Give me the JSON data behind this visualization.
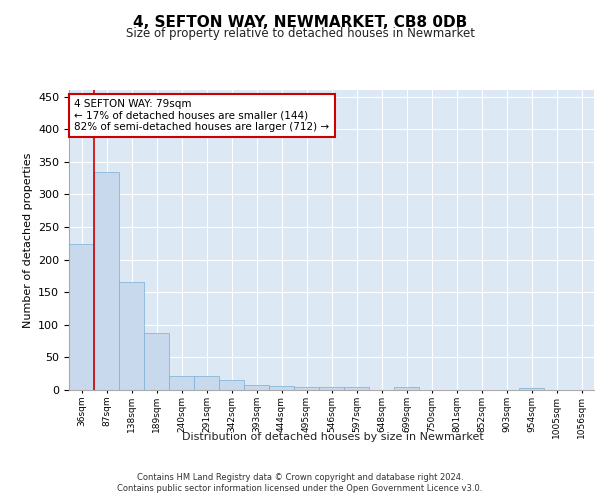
{
  "title": "4, SEFTON WAY, NEWMARKET, CB8 0DB",
  "subtitle": "Size of property relative to detached houses in Newmarket",
  "xlabel": "Distribution of detached houses by size in Newmarket",
  "ylabel": "Number of detached properties",
  "bar_color": "#c8d9ed",
  "bar_edge_color": "#7aafd4",
  "background_color": "#dce9f5",
  "grid_color": "#ffffff",
  "categories": [
    "36sqm",
    "87sqm",
    "138sqm",
    "189sqm",
    "240sqm",
    "291sqm",
    "342sqm",
    "393sqm",
    "444sqm",
    "495sqm",
    "546sqm",
    "597sqm",
    "648sqm",
    "699sqm",
    "750sqm",
    "801sqm",
    "852sqm",
    "903sqm",
    "954sqm",
    "1005sqm",
    "1056sqm"
  ],
  "values": [
    224,
    335,
    165,
    88,
    22,
    22,
    15,
    7,
    6,
    5,
    4,
    4,
    0,
    4,
    0,
    0,
    0,
    0,
    3,
    0,
    0
  ],
  "ylim": [
    0,
    460
  ],
  "yticks": [
    0,
    50,
    100,
    150,
    200,
    250,
    300,
    350,
    400,
    450
  ],
  "vline_color": "#cc0000",
  "annotation_lines": [
    "4 SEFTON WAY: 79sqm",
    "← 17% of detached houses are smaller (144)",
    "82% of semi-detached houses are larger (712) →"
  ],
  "annotation_box_color": "#ffffff",
  "annotation_box_edge_color": "#cc0000",
  "footer_line1": "Contains HM Land Registry data © Crown copyright and database right 2024.",
  "footer_line2": "Contains public sector information licensed under the Open Government Licence v3.0."
}
